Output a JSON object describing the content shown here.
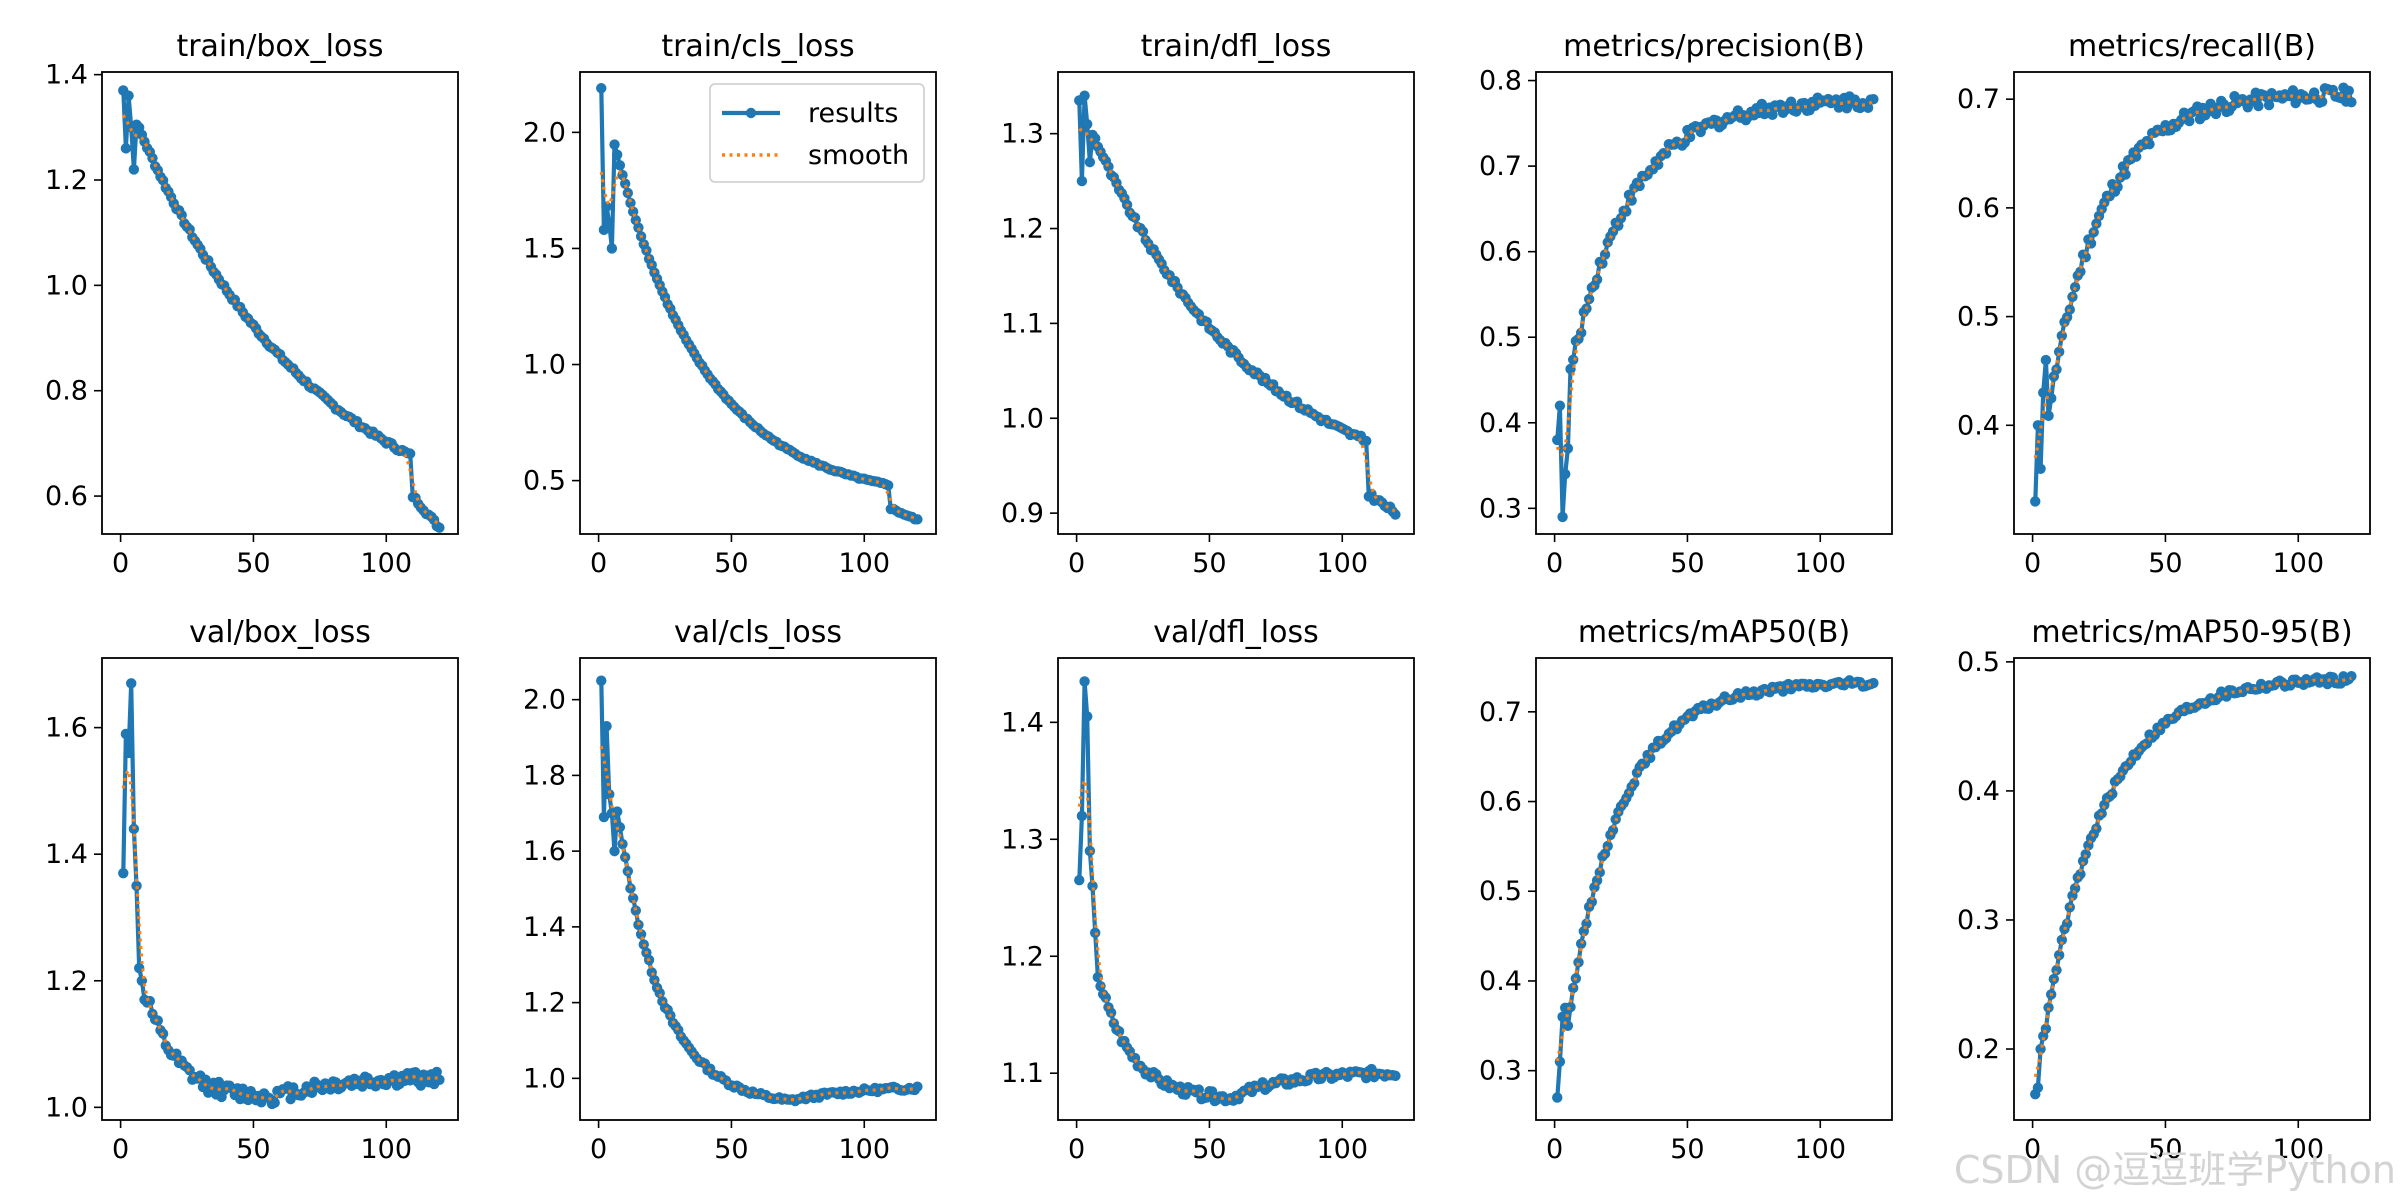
{
  "watermark": "CSDN @逗逗班学Python",
  "legend": {
    "results": "results",
    "smooth": "smooth",
    "position": "upper right (train/cls_loss panel)"
  },
  "colors": {
    "results": "#1f77b4",
    "smooth": "#ff7f0e",
    "axes": "#000000",
    "background": "#ffffff"
  },
  "chart_data": [
    {
      "type": "line",
      "title": "train/box_loss",
      "x_ticks": [
        0,
        50,
        100
      ],
      "y_ticks": [
        0.6,
        0.8,
        1.0,
        1.2,
        1.4
      ],
      "y_tick_labels": [
        "0.6",
        "0.8",
        "1.0",
        "1.2",
        "1.4"
      ],
      "xlim": [
        -7,
        127
      ],
      "ylim": [
        0.528,
        1.405
      ],
      "grid": false,
      "kind": "loss",
      "start": 1.37,
      "end": 0.54,
      "n": 120,
      "drop_at": 110,
      "drop_to": 0.6,
      "pre_drop": 0.675,
      "early": [
        1.37,
        1.26,
        1.36,
        1.3,
        1.22
      ],
      "noise": 0.004,
      "curvature": 1.6,
      "series": [
        {
          "name": "results",
          "points": "per-epoch values 1–120"
        },
        {
          "name": "smooth",
          "style": "dotted"
        }
      ]
    },
    {
      "type": "line",
      "title": "train/cls_loss",
      "x_ticks": [
        0,
        50,
        100
      ],
      "y_ticks": [
        0.5,
        1.0,
        1.5,
        2.0
      ],
      "y_tick_labels": [
        "0.5",
        "1.0",
        "1.5",
        "2.0"
      ],
      "xlim": [
        -7,
        127
      ],
      "ylim": [
        0.27,
        2.26
      ],
      "grid": false,
      "kind": "loss",
      "start": 2.19,
      "end": 0.33,
      "n": 120,
      "drop_at": 110,
      "drop_to": 0.38,
      "pre_drop": 0.48,
      "early": [
        2.19,
        1.58,
        1.68,
        1.61,
        1.5
      ],
      "noise": 0.004,
      "curvature": 3.2,
      "legend": true
    },
    {
      "type": "line",
      "title": "train/dfl_loss",
      "x_ticks": [
        0,
        50,
        100
      ],
      "y_ticks": [
        0.9,
        1.0,
        1.1,
        1.2,
        1.3
      ],
      "y_tick_labels": [
        "0.9",
        "1.0",
        "1.1",
        "1.2",
        "1.3"
      ],
      "xlim": [
        -7,
        127
      ],
      "ylim": [
        0.878,
        1.365
      ],
      "grid": false,
      "kind": "loss",
      "start": 1.335,
      "end": 0.9,
      "n": 120,
      "drop_at": 110,
      "drop_to": 0.92,
      "pre_drop": 0.975,
      "early": [
        1.335,
        1.25,
        1.34,
        1.31,
        1.27
      ],
      "noise": 0.003,
      "curvature": 1.8
    },
    {
      "type": "line",
      "title": "metrics/precision(B)",
      "x_ticks": [
        0,
        50,
        100
      ],
      "y_ticks": [
        0.3,
        0.4,
        0.5,
        0.6,
        0.7,
        0.8
      ],
      "y_tick_labels": [
        "0.3",
        "0.4",
        "0.5",
        "0.6",
        "0.7",
        "0.8"
      ],
      "xlim": [
        -7,
        127
      ],
      "ylim": [
        0.27,
        0.81
      ],
      "grid": false,
      "kind": "rise",
      "start": 0.38,
      "end": 0.778,
      "n": 120,
      "early": [
        0.38,
        0.42,
        0.29,
        0.34,
        0.37
      ],
      "noise": 0.008,
      "rate": 0.045
    },
    {
      "type": "line",
      "title": "metrics/recall(B)",
      "x_ticks": [
        0,
        50,
        100
      ],
      "y_ticks": [
        0.4,
        0.5,
        0.6,
        0.7
      ],
      "y_tick_labels": [
        "0.4",
        "0.5",
        "0.6",
        "0.7"
      ],
      "xlim": [
        -7,
        127
      ],
      "ylim": [
        0.3,
        0.725
      ],
      "grid": false,
      "kind": "rise",
      "start": 0.33,
      "end": 0.705,
      "n": 120,
      "early": [
        0.33,
        0.4,
        0.36,
        0.43,
        0.46
      ],
      "noise": 0.007,
      "rate": 0.05
    },
    {
      "type": "line",
      "title": "val/box_loss",
      "x_ticks": [
        0,
        50,
        100
      ],
      "y_ticks": [
        1.0,
        1.2,
        1.4,
        1.6
      ],
      "y_tick_labels": [
        "1.0",
        "1.2",
        "1.4",
        "1.6"
      ],
      "xlim": [
        -7,
        127
      ],
      "ylim": [
        0.98,
        1.71
      ],
      "grid": false,
      "kind": "valley",
      "start": 1.37,
      "end": 1.048,
      "n": 120,
      "min": 1.015,
      "min_at": 58,
      "early": [
        1.37,
        1.59,
        1.56,
        1.67,
        1.44,
        1.35,
        1.22,
        1.2,
        1.17
      ],
      "noise": 0.012,
      "rate": 0.09
    },
    {
      "type": "line",
      "title": "val/cls_loss",
      "x_ticks": [
        0,
        50,
        100
      ],
      "y_ticks": [
        1.0,
        1.2,
        1.4,
        1.6,
        1.8,
        2.0
      ],
      "y_tick_labels": [
        "1.0",
        "1.2",
        "1.4",
        "1.6",
        "1.8",
        "2.0"
      ],
      "xlim": [
        -7,
        127
      ],
      "ylim": [
        0.89,
        2.11
      ],
      "grid": false,
      "kind": "valley",
      "start": 2.05,
      "end": 0.98,
      "n": 120,
      "min": 0.925,
      "min_at": 72,
      "early": [
        2.05,
        1.69,
        1.93,
        1.75,
        1.7,
        1.6
      ],
      "noise": 0.006,
      "rate": 0.06
    },
    {
      "type": "line",
      "title": "val/dfl_loss",
      "x_ticks": [
        0,
        50,
        100
      ],
      "y_ticks": [
        1.1,
        1.2,
        1.3,
        1.4
      ],
      "y_tick_labels": [
        "1.1",
        "1.2",
        "1.3",
        "1.4"
      ],
      "xlim": [
        -7,
        127
      ],
      "ylim": [
        1.06,
        1.455
      ],
      "grid": false,
      "kind": "valley",
      "start": 1.265,
      "end": 1.102,
      "n": 120,
      "min": 1.077,
      "min_at": 58,
      "early": [
        1.265,
        1.32,
        1.435,
        1.405,
        1.29,
        1.26,
        1.22
      ],
      "noise": 0.004,
      "rate": 0.08
    },
    {
      "type": "line",
      "title": "metrics/mAP50(B)",
      "x_ticks": [
        0,
        50,
        100
      ],
      "y_ticks": [
        0.3,
        0.4,
        0.5,
        0.6,
        0.7
      ],
      "y_tick_labels": [
        "0.3",
        "0.4",
        "0.5",
        "0.6",
        "0.7"
      ],
      "xlim": [
        -7,
        127
      ],
      "ylim": [
        0.245,
        0.76
      ],
      "grid": false,
      "kind": "rise",
      "start": 0.27,
      "end": 0.733,
      "n": 120,
      "early": [
        0.27,
        0.31,
        0.36,
        0.37
      ],
      "noise": 0.004,
      "rate": 0.05
    },
    {
      "type": "line",
      "title": "metrics/mAP50-95(B)",
      "x_ticks": [
        0,
        50,
        100
      ],
      "y_ticks": [
        0.2,
        0.3,
        0.4,
        0.5
      ],
      "y_tick_labels": [
        "0.2",
        "0.3",
        "0.4",
        "0.5"
      ],
      "xlim": [
        -7,
        127
      ],
      "ylim": [
        0.145,
        0.503
      ],
      "grid": false,
      "kind": "rise",
      "start": 0.165,
      "end": 0.488,
      "n": 120,
      "early": [
        0.165,
        0.17,
        0.2,
        0.21
      ],
      "noise": 0.003,
      "rate": 0.045
    }
  ]
}
